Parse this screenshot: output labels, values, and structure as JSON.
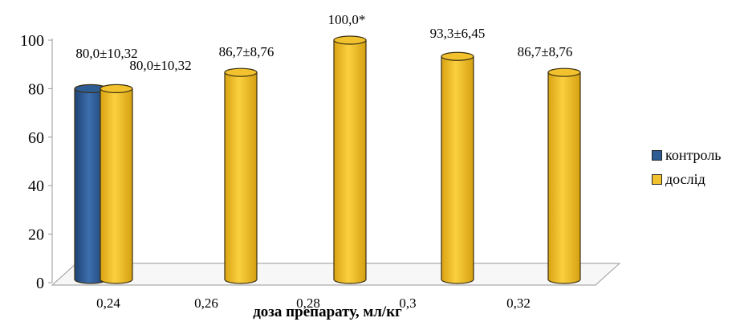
{
  "chart_data": {
    "type": "bar",
    "style": "3d-cylinder",
    "xlabel": "доза препарату, мл/кг",
    "ylabel": "",
    "ylim": [
      0,
      100
    ],
    "yticks": [
      "0",
      "20",
      "40",
      "60",
      "80",
      "100"
    ],
    "categories": [
      "0,24",
      "0,26",
      "0,28",
      "0,3",
      "0,32"
    ],
    "series": [
      {
        "name": "контроль",
        "color": "#2e5c94",
        "values": [
          80.0,
          null,
          null,
          null,
          null
        ],
        "labels": [
          "80,0±10,32",
          "",
          "",
          "",
          ""
        ]
      },
      {
        "name": "дослід",
        "color": "#f2c12e",
        "values": [
          80.0,
          86.7,
          100.0,
          93.3,
          86.7
        ],
        "labels": [
          "80,0±10,32",
          "86,7±8,76",
          "100,0*",
          "93,3±6,45",
          "86,7±8,76"
        ]
      }
    ],
    "grid": false,
    "legend_position": "right"
  }
}
